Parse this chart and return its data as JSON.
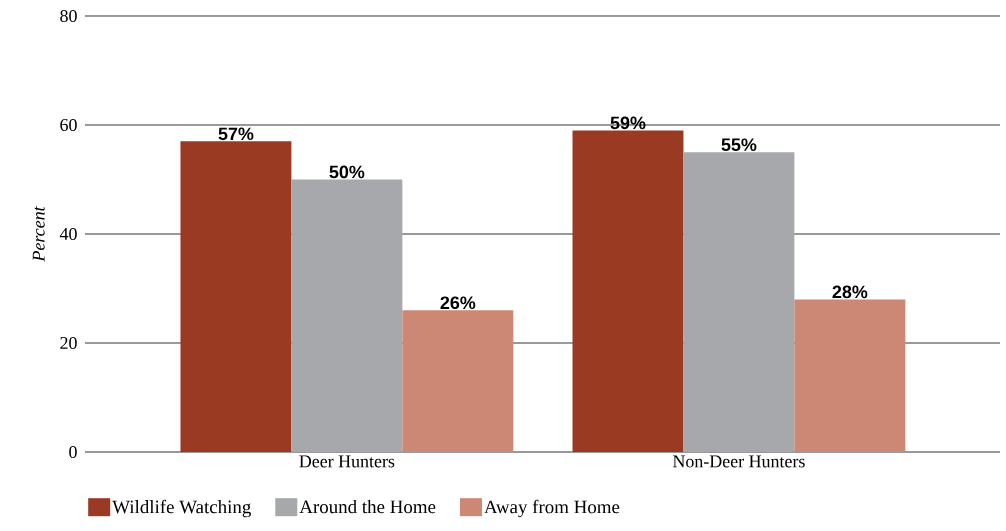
{
  "chart_data": {
    "type": "bar",
    "ylabel": "Percent",
    "categories": [
      "Deer Hunters",
      "Non-Deer Hunters"
    ],
    "series": [
      {
        "name": "Wildlife Watching",
        "color": "#9b3a22",
        "values": [
          57,
          59
        ],
        "value_labels": [
          "57%",
          "59%"
        ]
      },
      {
        "name": "Around the Home",
        "color": "#a7a8ab",
        "values": [
          50,
          55
        ],
        "value_labels": [
          "50%",
          "55%"
        ]
      },
      {
        "name": "Away from Home",
        "color": "#cd8775",
        "values": [
          26,
          28
        ],
        "value_labels": [
          "26%",
          "28%"
        ]
      }
    ],
    "ylim": [
      0,
      80
    ],
    "yticks": [
      0,
      20,
      40,
      60,
      80
    ],
    "grid": "y",
    "legend": "bottom"
  }
}
